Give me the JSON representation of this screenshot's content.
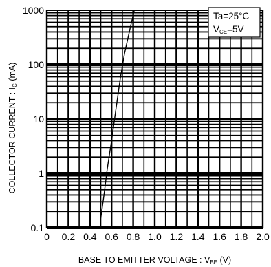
{
  "chart_data": {
    "type": "line",
    "xlabel": "BASE TO EMITTER VOLTAGE : V",
    "xlabel_sub": "BE",
    "xlabel_unit": " (V)",
    "ylabel": "COLLECTOR CURRENT : I",
    "ylabel_sub": "C",
    "ylabel_unit": " (mA)",
    "x_scale": "linear",
    "y_scale": "log",
    "xlim": [
      0,
      2.0
    ],
    "ylim": [
      0.1,
      1000
    ],
    "x_ticks": [
      "0",
      "0.2",
      "0.4",
      "0.6",
      "0.8",
      "1.0",
      "1.2",
      "1.4",
      "1.6",
      "1.8",
      "2.0"
    ],
    "y_ticks": [
      "0.1",
      "1",
      "10",
      "100",
      "1000"
    ],
    "grid": true,
    "conditions": {
      "line1_main": "Ta=25°C",
      "line2_prefix": "V",
      "line2_sub": "CE",
      "line2_suffix": "=5V",
      "placement": "top-right"
    },
    "series": [
      {
        "x": [
          0.5,
          0.53,
          0.56,
          0.6,
          0.64,
          0.68,
          0.72,
          0.77,
          0.81
        ],
        "y": [
          0.15,
          0.4,
          1.2,
          4,
          15,
          55,
          160,
          450,
          1000
        ]
      }
    ]
  }
}
